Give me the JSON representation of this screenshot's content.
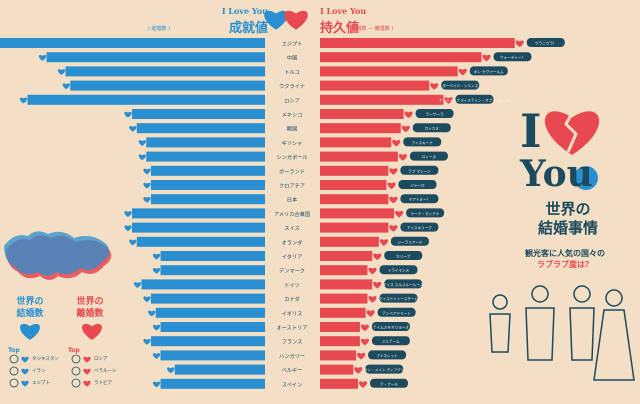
{
  "header": {
    "left_title_en": "I Love You",
    "left_title_jp": "成就値",
    "left_sub": "( 結婚数 )",
    "right_title_en": "I Love You",
    "right_title_jp": "持久値",
    "right_sub": "( 結婚数 ― 離婚数 )"
  },
  "branding": {
    "big_i": "I",
    "big_you": "You",
    "title_line1": "世界の",
    "title_line2": "結婚事情",
    "subtitle_line1": "観光客に人気の国々の",
    "subtitle_line2": "ラブラブ度は？"
  },
  "side_panel": {
    "world_marriage": "世界の",
    "world_marriage2": "結婚数",
    "world_divorce": "世界の",
    "world_divorce2": "離婚数",
    "top_label": "Top",
    "marriage_top": [
      "タジキスタン",
      "イラン",
      "エジプト"
    ],
    "divorce_top": [
      "ロシア",
      "ベラルーシ",
      "ラトビア"
    ]
  },
  "colors": {
    "background": "#f3dfc5",
    "marriage_blue": "#2a8fd0",
    "divorce_red": "#e8484f",
    "navy": "#1c4a5e"
  },
  "chart_data": {
    "type": "bar",
    "categories": [
      "エジプト",
      "中国",
      "トルコ",
      "ウクライナ",
      "ロシア",
      "メキシコ",
      "韓国",
      "ギリシャ",
      "シンガポール",
      "ポーランド",
      "クロアチア",
      "日本",
      "アメリカ合衆国",
      "スイス",
      "オランダ",
      "イタリア",
      "デンマーク",
      "ドイツ",
      "カナダ",
      "イギリス",
      "オーストリア",
      "フランス",
      "ハンガリー",
      "ベルギー",
      "スペイン"
    ],
    "series": [
      {
        "values": [
          280,
          230,
          210,
          205,
          250,
          140,
          135,
          125,
          125,
          120,
          120,
          120,
          140,
          140,
          135,
          110,
          110,
          130,
          120,
          115,
          110,
          120,
          110,
          95,
          110
        ]
      },
      {
        "values": [
          205,
          170,
          145,
          115,
          130,
          88,
          85,
          75,
          82,
          72,
          70,
          72,
          78,
          72,
          62,
          55,
          50,
          55,
          50,
          48,
          42,
          42,
          38,
          35,
          40
        ]
      }
    ],
    "callouts": [
      "ウラニウラ！",
      "ウォーディー！",
      "ボン セヴァールム",
      "ターベイド・シエンズ",
      "ナーシーンナディスティン・オブ・アムール",
      "ラーサーラ",
      "ロッカヌ",
      "アイスキーナ",
      "ロレーヌ",
      "ラブ マシーン",
      "ジャーロ",
      "マアトヌー！",
      "ケーテ・モンテナ",
      "アイスキリーグ",
      "ジーラリアード",
      "カリーブ",
      "トライマンス",
      "アイス スルスルールース",
      "アイスドイトースチーム",
      "テンペアドリート",
      "テイムスキオリヨーズ",
      "ジュテーム",
      "アイネレット",
      "ラン・メイン ディフテン",
      "テ・アーモ"
    ]
  }
}
